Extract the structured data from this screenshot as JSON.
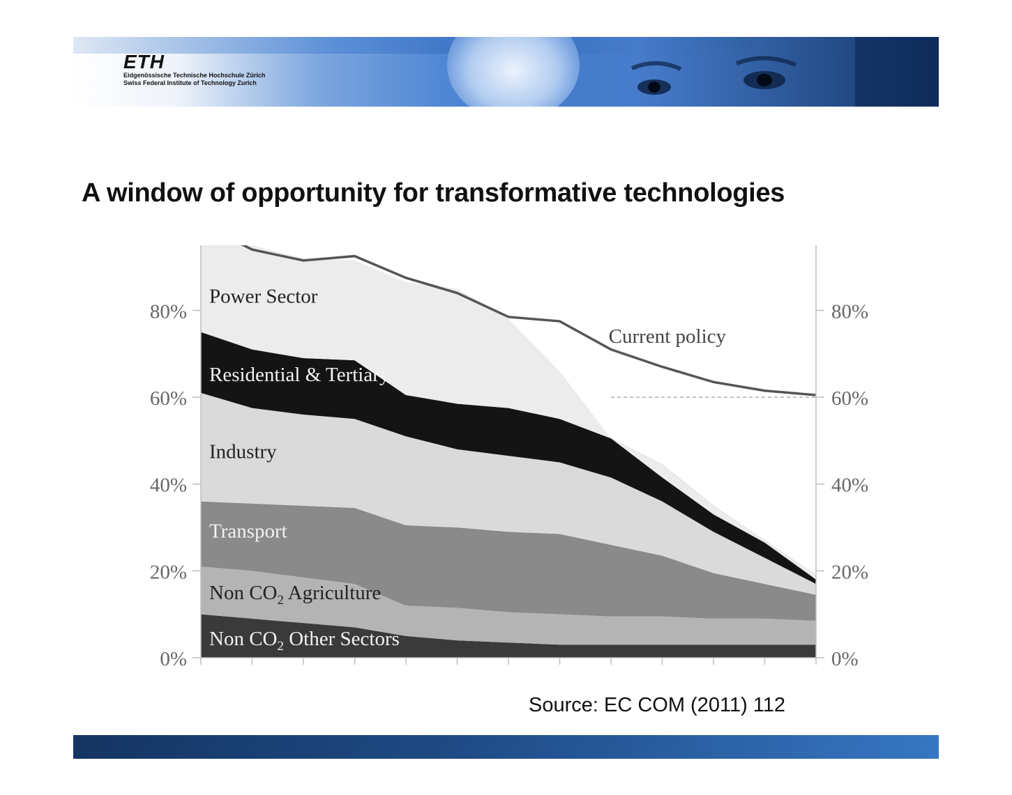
{
  "header": {
    "logo_text": "ETH",
    "institution_de": "Eidgenössische Technische Hochschule Zürich",
    "institution_en": "Swiss Federal Institute of Technology Zurich"
  },
  "slide": {
    "title": "A window of opportunity for transformative technologies",
    "source": "Source: EC COM (2011) 112"
  },
  "colors": {
    "power": "#ececec",
    "residential": "#141414",
    "industry": "#dadada",
    "transport": "#8a8a8a",
    "agriculture": "#b4b4b4",
    "other": "#3a3a3a",
    "current_policy": "#555555",
    "footer": "#1f4b86"
  },
  "chart_data": {
    "type": "area",
    "stacked": true,
    "x_index": [
      0,
      1,
      2,
      3,
      4,
      5,
      6,
      7,
      8,
      9,
      10,
      11,
      12
    ],
    "ylim": [
      0,
      95
    ],
    "yticks": [
      0,
      20,
      40,
      60,
      80
    ],
    "ytick_labels": [
      "0%",
      "20%",
      "40%",
      "60%",
      "80%"
    ],
    "grid": false,
    "reference_line": {
      "y": 60,
      "style": "dashed",
      "from_x": 8
    },
    "series": [
      {
        "name": "Non CO2 Other Sectors",
        "label_main": "Non CO",
        "label_sub": "2",
        "label_rest": " Other Sectors",
        "color_key": "other",
        "label_color": "#f2f2f2",
        "values": [
          10,
          9,
          8,
          7,
          5,
          4,
          3.5,
          3,
          3,
          3,
          3,
          3,
          3
        ]
      },
      {
        "name": "Non CO2 Agriculture",
        "label_main": "Non CO",
        "label_sub": "2",
        "label_rest": " Agriculture",
        "color_key": "agriculture",
        "label_color": "#222222",
        "values": [
          11,
          11,
          10.5,
          10,
          7,
          7.5,
          7,
          7,
          6.5,
          6.5,
          6,
          6,
          5.5
        ]
      },
      {
        "name": "Transport",
        "label_main": "Transport",
        "label_sub": "",
        "label_rest": "",
        "color_key": "transport",
        "label_color": "#f2f2f2",
        "values": [
          15,
          15.5,
          16.5,
          17.5,
          18.5,
          18.5,
          18.5,
          18.5,
          16.5,
          14,
          10.5,
          8,
          6
        ]
      },
      {
        "name": "Industry",
        "label_main": "Industry",
        "label_sub": "",
        "label_rest": "",
        "color_key": "industry",
        "label_color": "#222222",
        "values": [
          25,
          22,
          21,
          20.5,
          20.5,
          18,
          17.5,
          16.5,
          15.5,
          12.5,
          9.5,
          6,
          2.5
        ]
      },
      {
        "name": "Residential & Tertiary",
        "label_main": "Residential & Tertiary",
        "label_sub": "",
        "label_rest": "",
        "color_key": "residential",
        "label_color": "#f2f2f2",
        "values": [
          14,
          13.5,
          13,
          13.5,
          9.5,
          10.5,
          11,
          10,
          9,
          8.5,
          6,
          4,
          2
        ]
      },
      {
        "name": "Power Sector",
        "label_main": "Power Sector",
        "label_sub": "",
        "label_rest": "",
        "color_key": "power",
        "label_color": "#222222",
        "values": [
          20,
          24,
          23,
          23,
          26,
          26.5,
          20.5,
          11,
          0,
          -3,
          -2,
          -0.5,
          -1
        ]
      }
    ],
    "lines": [
      {
        "name": "Current policy",
        "color_key": "current_policy",
        "values": [
          100,
          94,
          91.5,
          92.5,
          87.5,
          84,
          78.5,
          77.5,
          71,
          67,
          63.5,
          61.5,
          60.5
        ]
      }
    ],
    "annotations": [
      {
        "text": "Current policy",
        "x": 9.1,
        "y": 72.5
      }
    ]
  }
}
